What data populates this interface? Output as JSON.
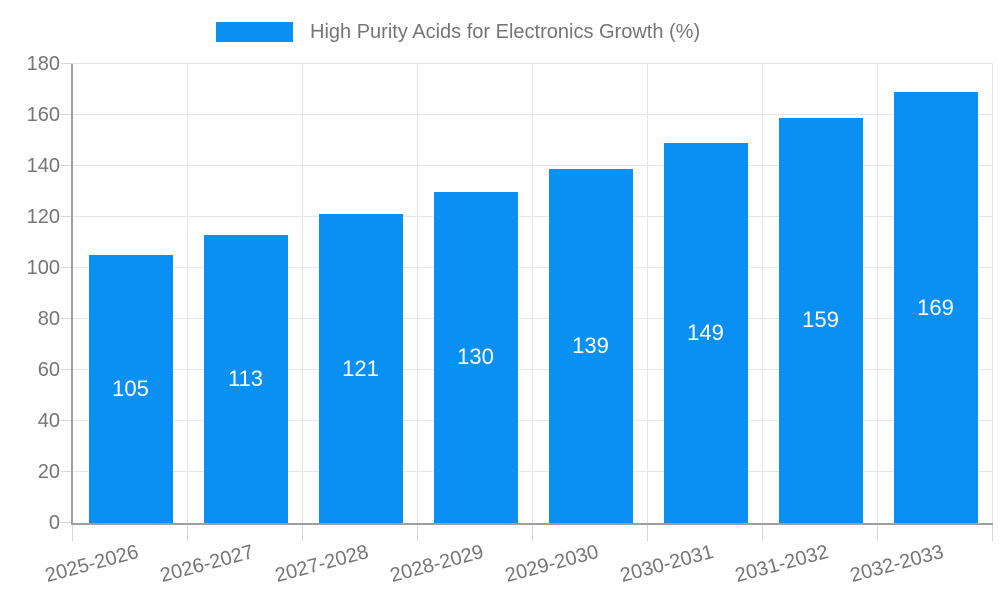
{
  "legend": {
    "label": "High Purity Acids for Electronics Growth (%)"
  },
  "chart_data": {
    "type": "bar",
    "title": "High Purity Acids for Electronics Growth (%)",
    "series_name": "High Purity Acids for Electronics Growth (%)",
    "categories": [
      "2025-2026",
      "2026-2027",
      "2027-2028",
      "2028-2029",
      "2029-2030",
      "2030-2031",
      "2031-2032",
      "2032-2033"
    ],
    "values": [
      105,
      113,
      121,
      130,
      139,
      149,
      159,
      169
    ],
    "xlabel": "",
    "ylabel": "",
    "ylim": [
      0,
      180
    ],
    "y_ticks": [
      0,
      20,
      40,
      60,
      80,
      100,
      120,
      140,
      160,
      180
    ],
    "grid": true,
    "legend_position": "top",
    "x_label_rotation_deg": -15,
    "colors": {
      "bar": "#0990f2",
      "value_label": "#ffffff",
      "text": "#757575",
      "grid": "#e6e6e6",
      "tick": "#d6d6d6",
      "axis": "#9e9e9e",
      "background": "#ffffff"
    }
  }
}
